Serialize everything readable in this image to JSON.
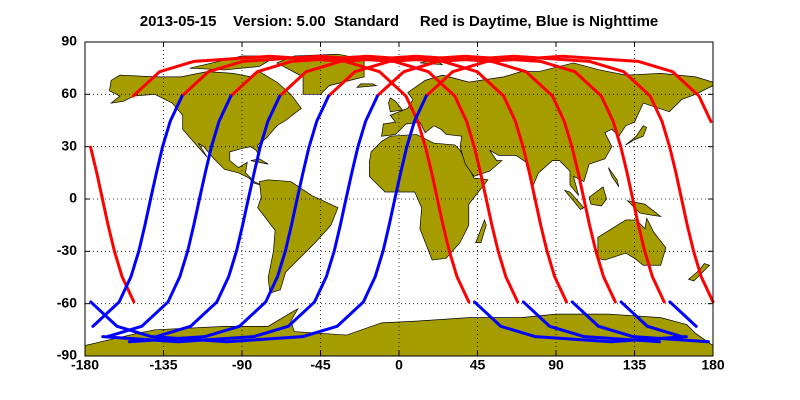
{
  "chart_data": {
    "type": "map",
    "title": "2013-05-15    Version: 5.00  Standard     Red is Daytime, Blue is Nighttime",
    "xlim": [
      -180,
      180
    ],
    "ylim": [
      -90,
      90
    ],
    "xticks": [
      -180,
      -135,
      -90,
      -45,
      0,
      45,
      90,
      135,
      180
    ],
    "yticks": [
      -90,
      -60,
      -30,
      0,
      30,
      60,
      90
    ],
    "grid": true,
    "series": [
      {
        "color": "#ff0000",
        "x": [
          40,
          33.2,
          28.8,
          25.2,
          22,
          18.8,
          15.2,
          10.8,
          4,
          -11.2,
          -31,
          -74.2,
          -117.4,
          -137.2,
          -152.4
        ],
        "values": [
          -59,
          -44.4,
          -29.7,
          -14.8,
          0,
          14.8,
          29.7,
          44.4,
          59,
          73,
          78.9,
          81.8,
          78.9,
          73,
          59
        ]
      },
      {
        "color": "#ff0000",
        "x": [
          68,
          61.2,
          56.8,
          53.2,
          50,
          46.8,
          43.2,
          38.8,
          32,
          16.8,
          -3,
          -46.2,
          -89.4,
          -109.2,
          -124.4
        ],
        "values": [
          -59,
          -44.4,
          -29.7,
          -14.8,
          0,
          14.8,
          29.7,
          44.4,
          59,
          73,
          78.9,
          81.8,
          78.9,
          73,
          59
        ]
      },
      {
        "color": "#ff0000",
        "x": [
          96,
          89.2,
          84.8,
          81.2,
          78,
          74.8,
          71.2,
          66.8,
          60,
          44.8,
          25,
          -18.2,
          -61.4,
          -81.2,
          -96.4
        ],
        "values": [
          -59,
          -44.4,
          -29.7,
          -14.8,
          0,
          14.8,
          29.7,
          44.4,
          59,
          73,
          78.9,
          81.8,
          78.9,
          73,
          59
        ]
      },
      {
        "color": "#ff0000",
        "x": [
          124,
          117.2,
          112.8,
          109.2,
          106,
          102.8,
          99.2,
          94.8,
          88,
          72.8,
          53,
          9.8,
          -33.4,
          -53.2,
          -68.4
        ],
        "values": [
          -59,
          -44.4,
          -29.7,
          -14.8,
          0,
          14.8,
          29.7,
          44.4,
          59,
          73,
          78.9,
          81.8,
          78.9,
          73,
          59
        ]
      },
      {
        "color": "#ff0000",
        "x": [
          152,
          145.2,
          140.8,
          137.2,
          134,
          130.8,
          127.2,
          122.8,
          116,
          100.8,
          81,
          37.8,
          -5.4,
          -25.2,
          -40.4
        ],
        "values": [
          -59,
          -44.4,
          -29.7,
          -14.8,
          0,
          14.8,
          29.7,
          44.4,
          59,
          73,
          78.9,
          81.8,
          78.9,
          73,
          59
        ]
      },
      {
        "color": "#ff0000",
        "x": [
          180,
          173.2,
          168.8,
          165.2,
          162,
          158.8,
          155.2,
          150.8,
          144,
          128.8,
          109,
          65.8,
          22.6,
          2.8,
          -12.6
        ],
        "values": [
          -59,
          -44.4,
          -29.7,
          -14.8,
          0,
          14.8,
          29.7,
          44.4,
          59,
          73,
          78.9,
          81.8,
          78.9,
          73,
          59
        ]
      },
      {
        "color": "#ff0000",
        "x": [
          -152,
          -158.8,
          -163.2,
          -166.8,
          -170,
          -173.2,
          -176.8,
          null,
          178.8,
          172,
          156.8,
          137,
          93.8,
          50.6,
          30.8,
          15.6
        ],
        "values": [
          -59,
          -44.4,
          -29.7,
          -14.8,
          0,
          14.8,
          29.7,
          null,
          44.4,
          59,
          73,
          78.9,
          81.8,
          78.9,
          73,
          59
        ]
      },
      {
        "color": "#0000ff",
        "x": [
          -124.4,
          -131.2,
          -135.6,
          -139.1,
          -142.4,
          -145.6,
          -149.1,
          -153.6,
          -160.4,
          -175.5,
          null,
          164.7,
          121.4,
          78.2,
          58.4,
          43.3
        ],
        "values": [
          59,
          44.4,
          29.7,
          14.8,
          0,
          -14.8,
          -29.7,
          -44.4,
          -59,
          -73,
          null,
          -78.9,
          -81.8,
          -78.9,
          -73,
          -59
        ]
      },
      {
        "color": "#0000ff",
        "x": [
          -96.4,
          -103.2,
          -107.6,
          -111.1,
          -114.4,
          -117.6,
          -121.1,
          -125.6,
          -132.4,
          -147.5,
          -167.3,
          null,
          149.4,
          106.2,
          86.4,
          71.3
        ],
        "values": [
          59,
          44.4,
          29.7,
          14.8,
          0,
          -14.8,
          -29.7,
          -44.4,
          -59,
          -73,
          -78.9,
          null,
          -81.8,
          -78.9,
          -73,
          -59
        ]
      },
      {
        "color": "#0000ff",
        "x": [
          -68.4,
          -75.2,
          -79.6,
          -83.1,
          -86.4,
          -89.6,
          -93.1,
          -97.6,
          -104.4,
          -119.5,
          -139.3,
          null,
          177.4,
          134.2,
          114.4,
          99.3
        ],
        "values": [
          59,
          44.4,
          29.7,
          14.8,
          0,
          -14.8,
          -29.7,
          -44.4,
          -59,
          -73,
          -78.9,
          null,
          -81.8,
          -78.9,
          -73,
          -59
        ]
      },
      {
        "color": "#0000ff",
        "x": [
          -40.4,
          -47.2,
          -51.6,
          -55.1,
          -58.4,
          -61.6,
          -65.1,
          -69.6,
          -76.4,
          -91.5,
          -111.3,
          -154.6,
          null,
          162.2,
          142.4,
          127.3
        ],
        "values": [
          59,
          44.4,
          29.7,
          14.8,
          0,
          -14.8,
          -29.7,
          -44.4,
          -59,
          -73,
          -78.9,
          -81.8,
          null,
          -78.9,
          -73,
          -59
        ]
      },
      {
        "color": "#0000ff",
        "x": [
          -12.4,
          -19.2,
          -23.6,
          -27.1,
          -30.4,
          -33.6,
          -37.1,
          -41.6,
          -48.4,
          -63.5,
          -83.3,
          -126.6,
          -169.8,
          null,
          170.4,
          155.3
        ],
        "values": [
          59,
          44.4,
          29.7,
          14.8,
          0,
          -14.8,
          -29.7,
          -44.4,
          -59,
          -73,
          -78.9,
          -81.8,
          -78.9,
          null,
          -73,
          -59
        ]
      },
      {
        "color": "#0000ff",
        "x": [
          15.6,
          8.8,
          4.4,
          0.9,
          -2.4,
          -5.6,
          -9.1,
          -13.6,
          -20.4,
          -35.5,
          -55.3,
          -98.6,
          -141.8,
          -161.6,
          -176.7
        ],
        "values": [
          59,
          44.4,
          29.7,
          14.8,
          0,
          -14.8,
          -29.7,
          -44.4,
          -59,
          -73,
          -78.9,
          -81.8,
          -78.9,
          -73,
          -59
        ]
      }
    ]
  }
}
